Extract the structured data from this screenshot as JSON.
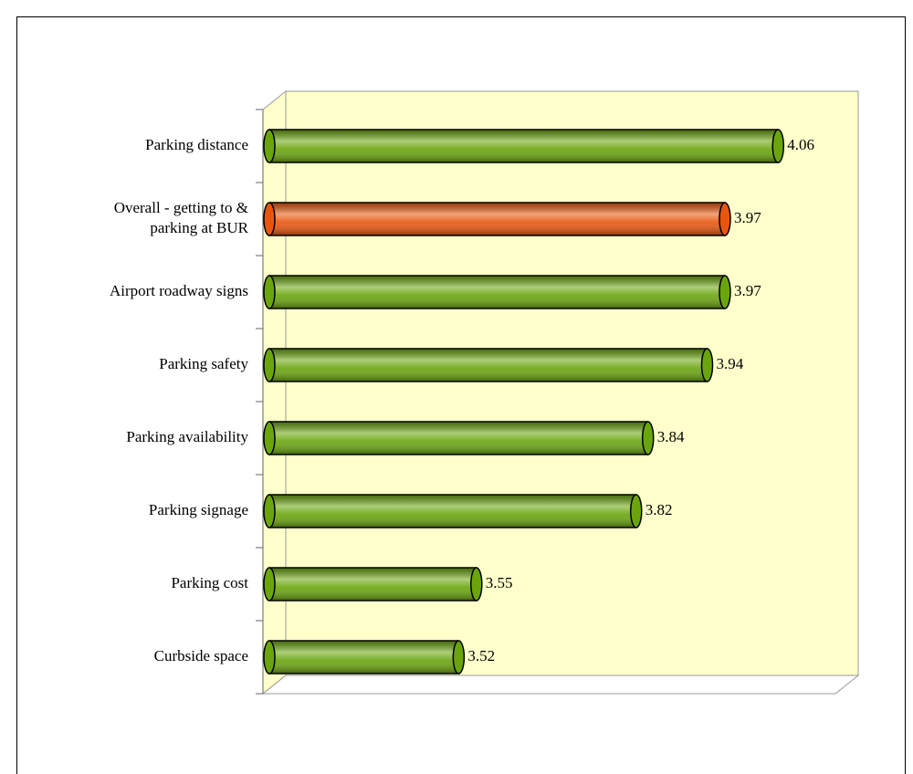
{
  "chart_data": {
    "type": "bar",
    "orientation": "horizontal",
    "categories": [
      "Parking distance",
      "Overall - getting to & parking at BUR",
      "Airport roadway signs",
      "Parking safety",
      "Parking availability",
      "Parking signage",
      "Parking  cost",
      "Curbside space"
    ],
    "values": [
      4.06,
      3.97,
      3.97,
      3.94,
      3.84,
      3.82,
      3.55,
      3.52
    ],
    "colors": [
      "#6aa50e",
      "#e8560e",
      "#6aa50e",
      "#6aa50e",
      "#6aa50e",
      "#6aa50e",
      "#6aa50e",
      "#6aa50e"
    ],
    "xlim": [
      3.2,
      4.2
    ]
  }
}
